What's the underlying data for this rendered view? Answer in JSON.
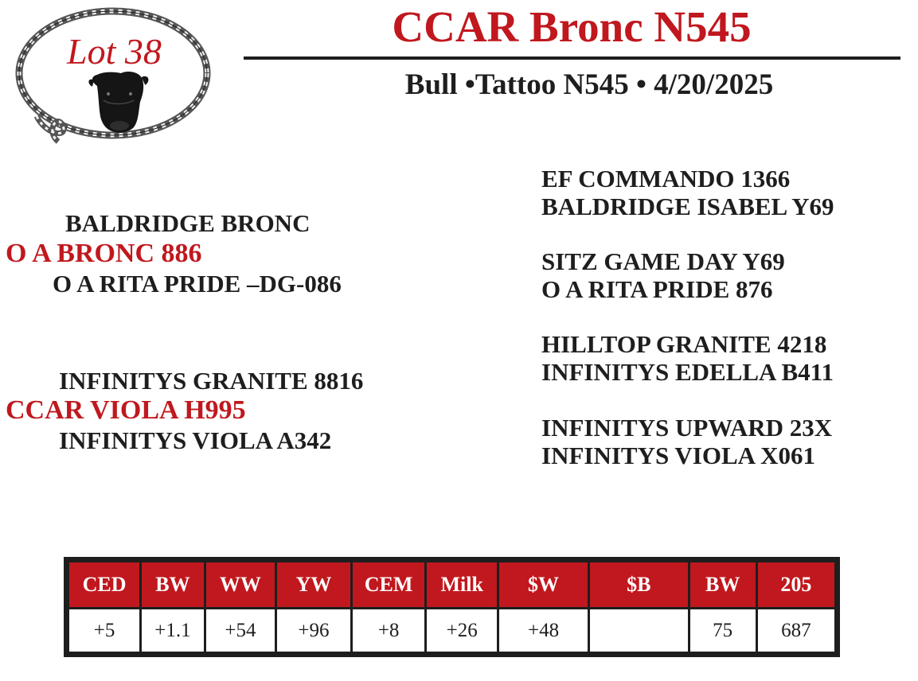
{
  "lot": {
    "label": "Lot 38"
  },
  "header": {
    "title": "CCAR Bronc N545",
    "subtitle": "Bull •Tattoo N545 • 4/20/2025"
  },
  "pedigree": {
    "sire": {
      "name": "O A BRONC 886",
      "sire": "BALDRIDGE BRONC",
      "dam": "O A RITA PRIDE –DG-086"
    },
    "dam": {
      "name": "CCAR VIOLA H995",
      "sire": "INFINITYS GRANITE 8816",
      "dam": "INFINITYS VIOLA A342"
    },
    "grandparents": [
      "EF COMMANDO 1366",
      "BALDRIDGE ISABEL Y69",
      "SITZ GAME DAY Y69",
      "O A RITA PRIDE 876",
      "HILLTOP GRANITE 4218",
      "INFINITYS EDELLA B411",
      "INFINITYS UPWARD 23X",
      "INFINITYS VIOLA X061"
    ]
  },
  "epd_table": {
    "headers": [
      "CED",
      "BW",
      "WW",
      "YW",
      "CEM",
      "Milk",
      "$W",
      "$B",
      "BW",
      "205"
    ],
    "values": [
      "+5",
      "+1.1",
      "+54",
      "+96",
      "+8",
      "+26",
      "+48",
      "",
      "75",
      "687"
    ]
  },
  "colors": {
    "accent": "#c0181e",
    "text": "#1e1e1e"
  },
  "icons": {
    "logo": "rope-lasso-logo",
    "animal": "bull-head-icon"
  }
}
